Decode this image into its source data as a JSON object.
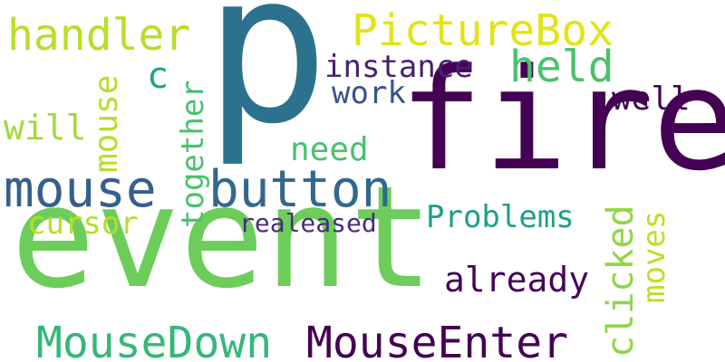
{
  "words": [
    {
      "key": "p",
      "text": "p",
      "color": "#2c728e"
    },
    {
      "key": "fire",
      "text": "fire",
      "color": "#440154"
    },
    {
      "key": "event",
      "text": "event",
      "color": "#6ccd5a"
    },
    {
      "key": "mouse_h",
      "text": "mouse",
      "color": "#355f8d"
    },
    {
      "key": "button",
      "text": "button",
      "color": "#31688e"
    },
    {
      "key": "picturebox",
      "text": "PictureBox",
      "color": "#e2e418"
    },
    {
      "key": "handler",
      "text": "handler",
      "color": "#b8de29"
    },
    {
      "key": "held",
      "text": "held",
      "color": "#4ac16d"
    },
    {
      "key": "instance",
      "text": "instance",
      "color": "#481f70"
    },
    {
      "key": "work",
      "text": "work",
      "color": "#3b528b"
    },
    {
      "key": "well",
      "text": "well",
      "color": "#440154"
    },
    {
      "key": "c",
      "text": "c",
      "color": "#20a386"
    },
    {
      "key": "will",
      "text": "will",
      "color": "#a0da39"
    },
    {
      "key": "mouse_v",
      "text": "mouse",
      "color": "#b5de2b"
    },
    {
      "key": "together",
      "text": "together",
      "color": "#4ac16d"
    },
    {
      "key": "need",
      "text": "need",
      "color": "#4ac16d"
    },
    {
      "key": "clicked",
      "text": "clicked",
      "color": "#8fd744"
    },
    {
      "key": "moves",
      "text": "moves",
      "color": "#bddf26"
    },
    {
      "key": "cursor",
      "text": "cursor",
      "color": "#b8de29"
    },
    {
      "key": "realeased",
      "text": "realeased",
      "color": "#472d7b"
    },
    {
      "key": "problems",
      "text": "Problems",
      "color": "#1f9e89"
    },
    {
      "key": "already",
      "text": "already",
      "color": "#450559"
    },
    {
      "key": "mousedown",
      "text": "MouseDown",
      "color": "#35b779"
    },
    {
      "key": "mouseenter",
      "text": "MouseEnter",
      "color": "#440154"
    }
  ]
}
